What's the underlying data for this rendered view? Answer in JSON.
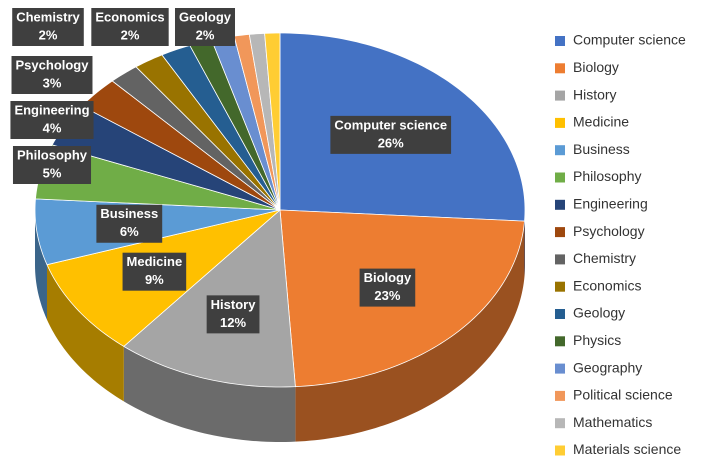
{
  "chart_data": {
    "type": "pie3d",
    "categories": [
      "Computer science",
      "Biology",
      "History",
      "Medicine",
      "Business",
      "Philosophy",
      "Engineering",
      "Psychology",
      "Chemistry",
      "Economics",
      "Geology",
      "Physics",
      "Geography",
      "Political science",
      "Mathematics",
      "Materials science"
    ],
    "values": [
      26,
      23,
      12,
      9,
      6,
      5,
      4,
      3,
      2,
      2,
      2,
      1.5,
      1.5,
      1,
      1,
      1
    ],
    "value_labels": [
      "26%",
      "23%",
      "12%",
      "9%",
      "6%",
      "5%",
      "4%",
      "3%",
      "2%",
      "2%",
      "2%",
      null,
      null,
      null,
      null,
      null
    ],
    "colors": [
      "#4472c4",
      "#ed7d31",
      "#a5a5a5",
      "#ffc000",
      "#5b9bd5",
      "#70ad47",
      "#264478",
      "#9e480e",
      "#636363",
      "#997300",
      "#255e91",
      "#43682b",
      "#698ed0",
      "#f1975a",
      "#b7b7b7",
      "#ffcd33"
    ],
    "legend": "right"
  }
}
